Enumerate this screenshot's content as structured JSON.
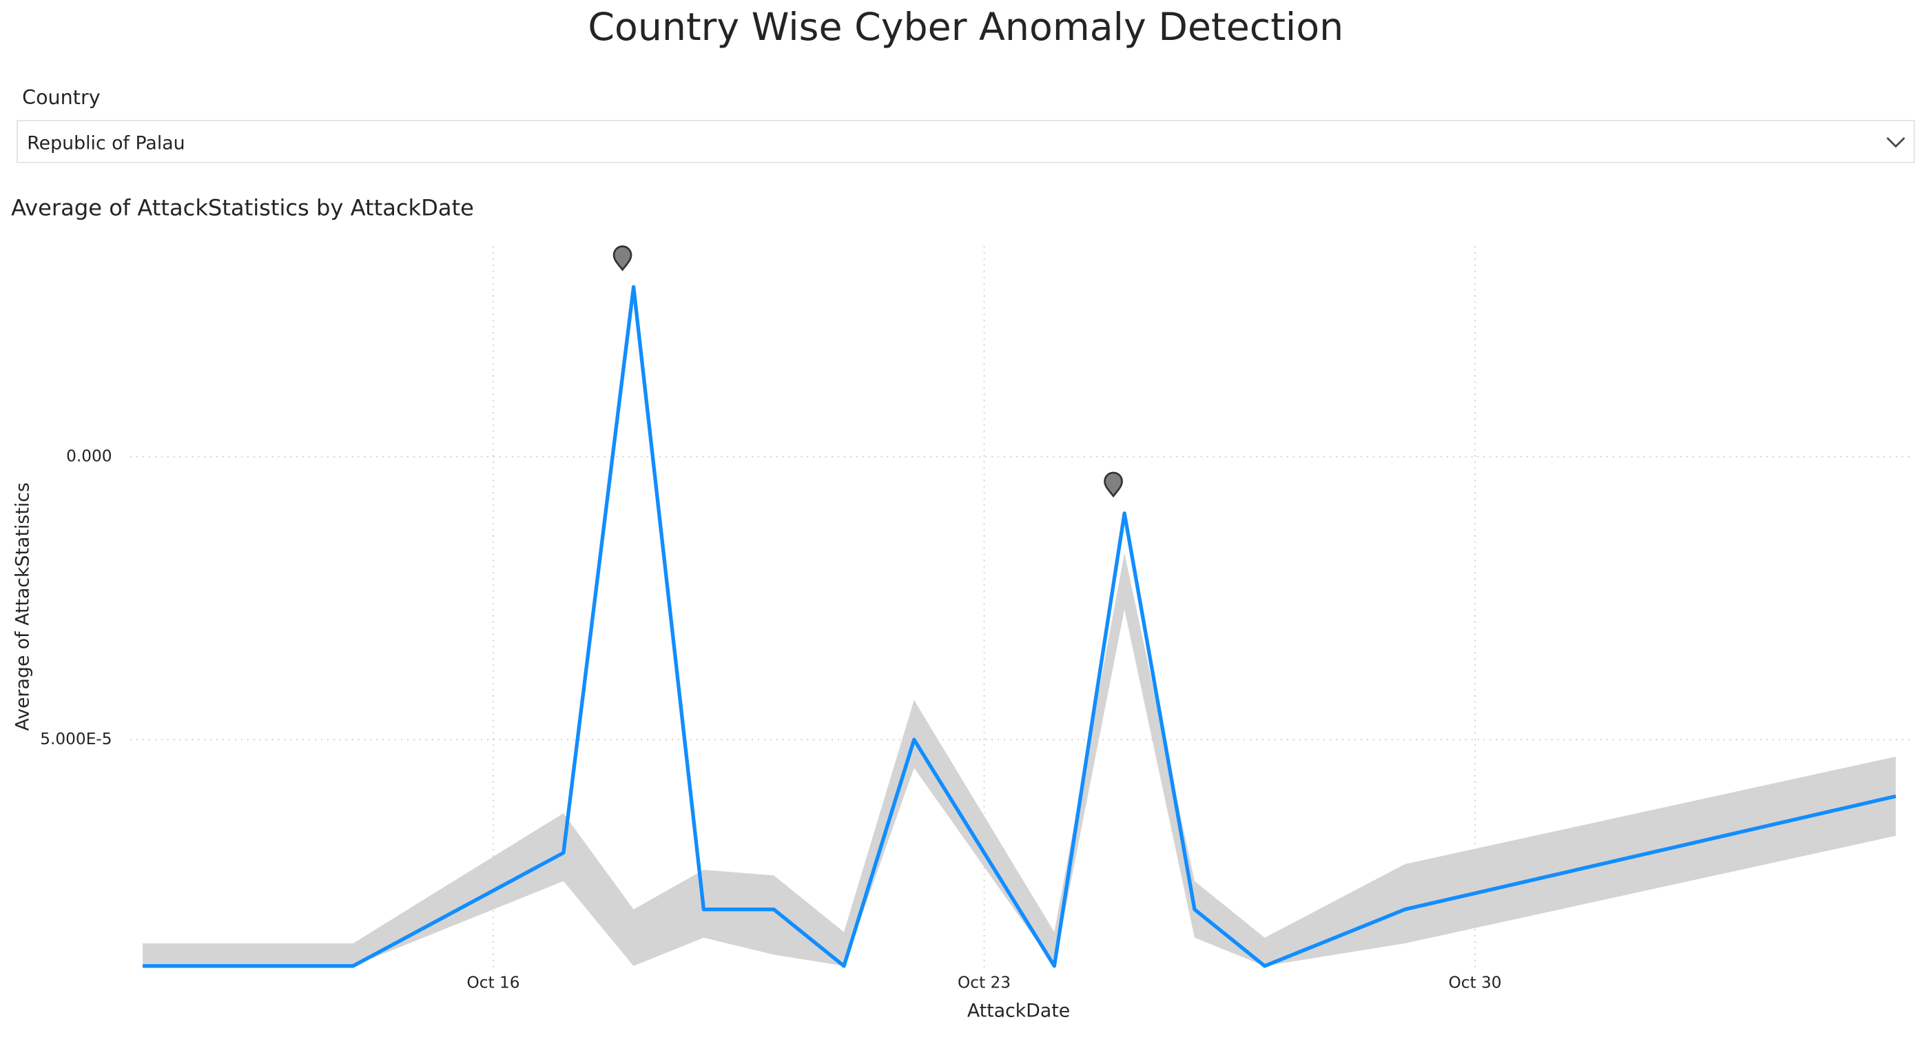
{
  "header": {
    "title": "Country Wise Cyber Anomaly Detection"
  },
  "slicer": {
    "label": "Country",
    "selected": "Republic of Palau"
  },
  "chart_data": {
    "type": "line",
    "title": "Average of AttackStatistics by AttackDate",
    "x_label": "AttackDate",
    "y_label": "Average of AttackStatistics",
    "x": [
      "Oct 11",
      "Oct 14",
      "Oct 17",
      "Oct 18",
      "Oct 19",
      "Oct 20",
      "Oct 21",
      "Oct 22",
      "Oct 24",
      "Oct 25",
      "Oct 26",
      "Oct 27",
      "Oct 29",
      "Nov 5"
    ],
    "values": [
      9e-05,
      9e-05,
      7e-05,
      -3e-05,
      8e-05,
      8e-05,
      9e-05,
      5e-05,
      9e-05,
      1e-05,
      8e-05,
      9e-05,
      8e-05,
      6e-05
    ],
    "band_upper": [
      8.6e-05,
      8.6e-05,
      6.3e-05,
      8e-05,
      7.3e-05,
      7.4e-05,
      8.4e-05,
      4.3e-05,
      8.4e-05,
      1.7e-05,
      7.5e-05,
      8.5e-05,
      7.2e-05,
      5.3e-05
    ],
    "band_lower": [
      9e-05,
      9e-05,
      7.5e-05,
      9e-05,
      8.5e-05,
      8.8e-05,
      9e-05,
      5.5e-05,
      9e-05,
      2.7e-05,
      8.5e-05,
      9e-05,
      8.6e-05,
      6.7e-05
    ],
    "anomalies": [
      "Oct 18",
      "Oct 25"
    ],
    "color": "#118dff",
    "band_color": "#d4d4d4",
    "anomaly_color": "#808080",
    "xlim": [
      "Oct 11",
      "Nov 5"
    ],
    "xticks": [
      "Oct 16",
      "Oct 23",
      "Oct 30"
    ],
    "ylim": [
      9e-05,
      -3.7e-05
    ],
    "yticks": [
      {
        "value": 0,
        "label": "0.000"
      },
      {
        "value": 5e-05,
        "label": "5.000E-5"
      }
    ],
    "grid": true
  }
}
